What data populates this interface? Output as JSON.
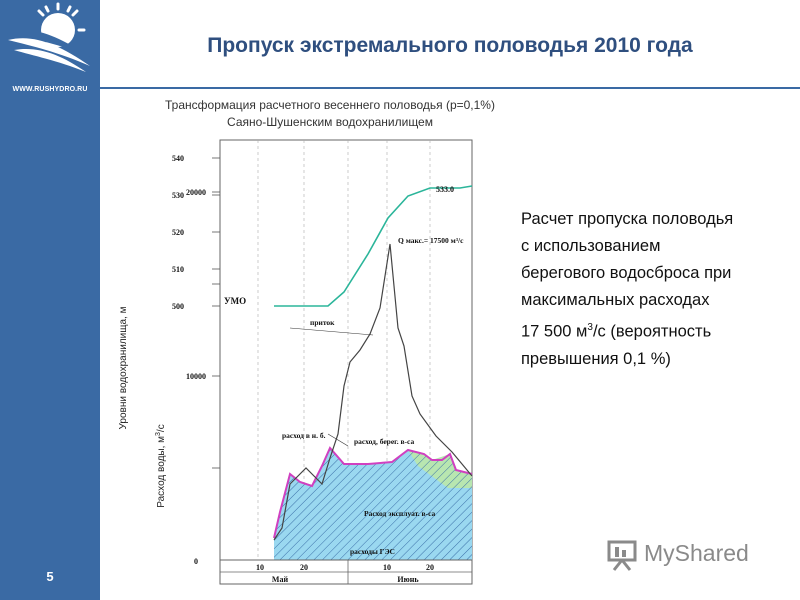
{
  "sidebar": {
    "site_url": "WWW.RUSHYDRO.RU",
    "slide_number": "5",
    "logo_icon": "rushydro-logo-icon"
  },
  "header": {
    "title": "Пропуск экстремального половодья 2010 года"
  },
  "chart_header": {
    "line1": "Трансформация расчетного весеннего половодья (р=0,1%)",
    "line2": "Саяно-Шушенским водохранилищем"
  },
  "description": {
    "lines": [
      "Расчет пропуска половодья",
      "с использованием",
      "берегового водосброса при",
      "максимальных расходах"
    ],
    "value_line": "17 500 м",
    "value_sup": "3",
    "value_tail": "/с (вероятность",
    "last_line": "превышения 0,1 %)"
  },
  "chart_data": {
    "type": "line",
    "ylabel_level": "Уровни водохранилища, м",
    "ylabel_flow_main": "Расход воды, м",
    "ylabel_flow_sup": "3",
    "ylabel_flow_tail": "/с",
    "level_ticks": [
      "540",
      "530",
      "520",
      "510",
      "500"
    ],
    "flow_ticks": [
      "20000",
      "10000",
      "0"
    ],
    "ylim_level": [
      500,
      540
    ],
    "ylim_flow": [
      0,
      22000
    ],
    "x_ticks": [
      "10",
      "20",
      "10",
      "20"
    ],
    "months": [
      "Май",
      "Июнь"
    ],
    "labels": {
      "umo": "УМО",
      "peak_level": "533.0",
      "q_max": "Q макс.= 17500 м³/с",
      "inflow": "приток",
      "downstream": "расход в н. б.",
      "shore_spill": "расход, берег. в-са",
      "operational_spill": "Расход эксплуат. в-са",
      "hpp_flow": "расходы ГЭС"
    },
    "colors": {
      "level": "#2bb59a",
      "inflow": "#444444",
      "outflow": "#d040c0",
      "hpp_fill": "#9ad8f0",
      "shore_fill": "#b8e6b0"
    }
  },
  "watermark": {
    "text": "MyShared",
    "icon": "presentation-board-icon"
  }
}
